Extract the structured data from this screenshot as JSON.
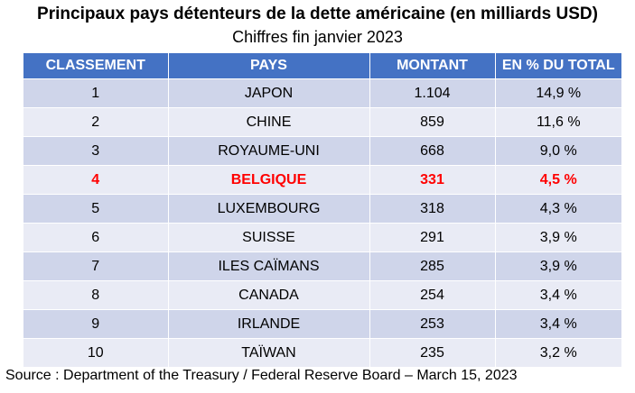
{
  "chart_data": {
    "type": "table",
    "title": "Principaux pays détenteurs de la dette américaine (en milliards USD)",
    "subtitle": "Chiffres fin janvier 2023",
    "columns": [
      "CLASSEMENT",
      "PAYS",
      "MONTANT",
      "EN % DU TOTAL"
    ],
    "rows": [
      {
        "rank": "1",
        "country": "JAPON",
        "amount": "1.104",
        "percent": "14,9 %"
      },
      {
        "rank": "2",
        "country": "CHINE",
        "amount": "859",
        "percent": "11,6 %"
      },
      {
        "rank": "3",
        "country": "ROYAUME-UNI",
        "amount": "668",
        "percent": "9,0 %"
      },
      {
        "rank": "4",
        "country": "BELGIQUE",
        "amount": "331",
        "percent": "4,5 %"
      },
      {
        "rank": "5",
        "country": "LUXEMBOURG",
        "amount": "318",
        "percent": "4,3 %"
      },
      {
        "rank": "6",
        "country": "SUISSE",
        "amount": "291",
        "percent": "3,9 %"
      },
      {
        "rank": "7",
        "country": "ILES CAÏMANS",
        "amount": "285",
        "percent": "3,9 %"
      },
      {
        "rank": "8",
        "country": "CANADA",
        "amount": "254",
        "percent": "3,4 %"
      },
      {
        "rank": "9",
        "country": "IRLANDE",
        "amount": "253",
        "percent": "3,4 %"
      },
      {
        "rank": "10",
        "country": "TAÏWAN",
        "amount": "235",
        "percent": "3,2 %"
      }
    ],
    "highlighted_rank": "4",
    "highlight_color": "#ff0000",
    "header_color": "#4472c4",
    "row_color_odd": "#cfd5ea",
    "row_color_even": "#e9ebf5",
    "source": "Source : Department of the Treasury / Federal Reserve Board – March 15, 2023"
  }
}
